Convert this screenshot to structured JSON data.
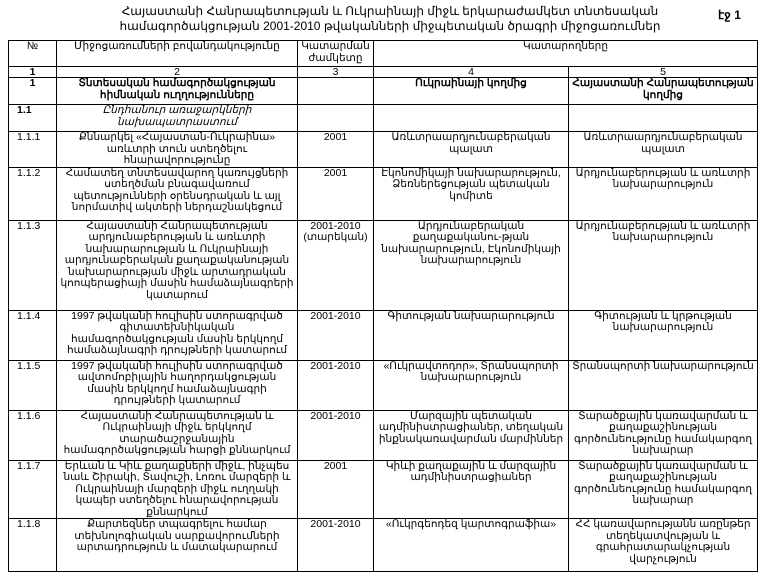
{
  "title": "Հայաստանի Հանրապետության և Ուկրաինայի միջև երկարաժամկետ տնտեսական համագործակցության 2001-2010 թվականների միջպետական ծրագրի միջոցառումներ",
  "page_label": "էջ 1",
  "headers": {
    "num": "№",
    "content": "Միջոցառումների բովանդակությունը",
    "deadline": "Կատարման ժամկետը",
    "executors": "Կատարողները"
  },
  "column_numbers": [
    "1",
    "2",
    "3",
    "4",
    "5"
  ],
  "section": {
    "num": "1",
    "content": "Տնտեսական համագործակցության հիմնական ուղղությունները",
    "ukraine": "Ուկրաինայի կողմից",
    "armenia": "Հայաստանի Հանրապետության կողմից"
  },
  "subsection": {
    "num": "1.1",
    "content": "Ընդհանուր առաջարկների նախապատրաստում"
  },
  "rows": [
    {
      "num": "1.1.1",
      "content": "Քննարկել «Հայաստան-Ուկրաինա» առևտրի տուն ստեղծելու հնարավորությունը",
      "deadline": "2001",
      "ukraine": "Առևտրաարդյունաբերական պալատ",
      "armenia": "Առևտրաարդյունաբերական պալատ"
    },
    {
      "num": "1.1.2",
      "content": "Համատեղ տնտեսավարող կառույցների ստեղծման բնագավառում պետությունների օրենսդրական և այլ նորմատիվ ակտերի ներդաշնակեցում",
      "deadline": "2001",
      "ukraine": "Էկոնոմիկայի նախարարություն, Ձեռներեցության պետական կոմիտե",
      "armenia": "Արդյունաբերության և առևտրի նախարարություն"
    },
    {
      "num": "1.1.3",
      "content": "Հայաստանի Հանրապետության արդյունաբերության և առևտրի նախարարության և Ուկրաինայի արդյունաբերական քաղաքականության նախարարության միջև արտադրական կոոպերացիայի մասին համաձայնագրերի կատարում",
      "deadline": "2001-2010 (տարեկան)",
      "ukraine": "Արդյունաբերական քաղաքականու-թյան նախարարություն, Էկոնոմիկայի նախարարություն",
      "armenia": "Արդյունաբերության և առևտրի նախարարություն"
    },
    {
      "num": "1.1.4",
      "content": "1997 թվականի հուլիսին ստորագրված գիտատեխնիկական համագործակցության մասին երկկողմ համաձայնագրի դրույթների կատարում",
      "deadline": "2001-2010",
      "ukraine": "Գիտության նախարարություն",
      "armenia": "Գիտության և կրթության նախարարություն"
    },
    {
      "num": "1.1.5",
      "content": "1997 թվականի հուլիսին ստորագրված ավտոմոբիլային հաղորդակցության մասին երկկողմ համաձայնագրի դրույթների կատարում",
      "deadline": "2001-2010",
      "ukraine": "«Ուկրավտոդոր», Տրանսպորտի նախարարություն",
      "armenia": "Տրանսպորտի նախարարություն"
    },
    {
      "num": "1.1.6",
      "content": "Հայաստանի Հանրապետության և Ուկրաինայի միջև երկկողմ տարածաշրջանային համագործակցության հարցի քննարկում",
      "deadline": "2001-2010",
      "ukraine": "Մարզային պետական ադմինիստրացիաներ, տեղական ինքնակառավարման մարմիններ",
      "armenia": "Տարածքային կառավարման և քաղաքաշինության գործունեությունը համակարգող նախարար"
    },
    {
      "num": "1.1.7",
      "content": "Երևան և Կիև քաղաքների միջև, ինչպես նաև Շիրակի, Տավուշի, Լոռու մարզերի և Ուկրաինայի մարզերի միջև ուղղակի կապեր ստեղծելու հնարավորության քննարկում",
      "deadline": "2001",
      "ukraine": "Կիևի քաղաքային և մարզային ադմինիստրացիաներ",
      "armenia": "Տարածքային կառավարման և քաղաքաշինության գործունեությունը համակարգող նախարար"
    },
    {
      "num": "1.1.8",
      "content": "Քարտեզներ տպագրելու համար տեխնոլոգիական սարքավորումների արտադրություն և մատակարարում",
      "deadline": "2001-2010",
      "ukraine": "«Ուկրգեոդեզ կարտոգրաֆիա»",
      "armenia": "ՀՀ կառավարությանն առընթեր տեղեկատվության և գրահրատարակչության վարչություն"
    }
  ]
}
